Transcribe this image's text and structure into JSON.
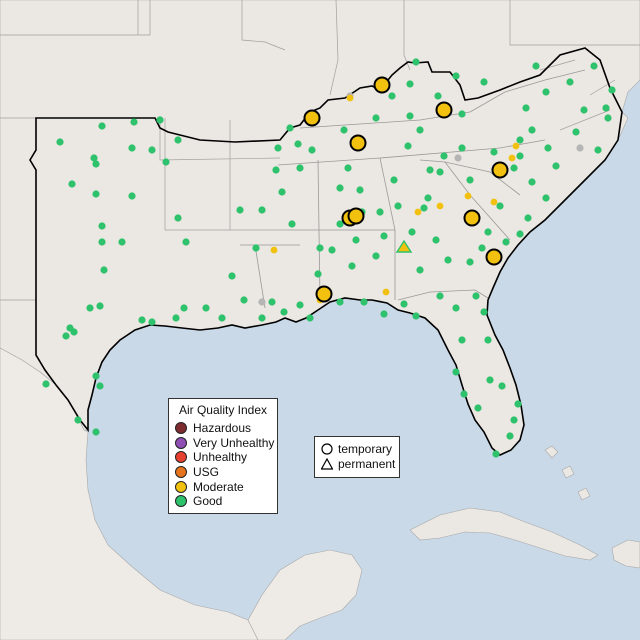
{
  "map": {
    "colors": {
      "water": "#c9d9e8",
      "land": "#ebe7e2",
      "land_outside": "#eeeae5",
      "boundary": "#9c9c9c",
      "region_outline": "#000000",
      "good": "#2dc26b",
      "moderate": "#f2c10f",
      "no_data": "#b5b5b5"
    }
  },
  "legend_aqi": {
    "title": "Air Quality Index",
    "items": [
      {
        "label": "Hazardous",
        "color": "#7e2b2f"
      },
      {
        "label": "Very Unhealthy",
        "color": "#8f4fb5"
      },
      {
        "label": "Unhealthy",
        "color": "#e8402e"
      },
      {
        "label": "USG",
        "color": "#e6731d"
      },
      {
        "label": "Moderate",
        "color": "#f2c10f"
      },
      {
        "label": "Good",
        "color": "#2dc26b"
      }
    ]
  },
  "legend_type": {
    "items": [
      {
        "label": "temporary",
        "shape": "circle-icon"
      },
      {
        "label": "permanent",
        "shape": "triangle-icon"
      }
    ]
  }
}
